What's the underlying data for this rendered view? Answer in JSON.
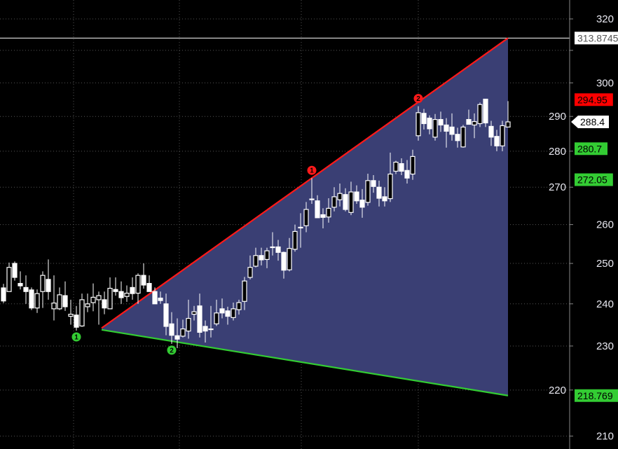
{
  "chart_data": {
    "type": "candlestick",
    "yscale": "log",
    "ylim": [
      208,
      324
    ],
    "grid": true,
    "y_ticks": [
      320,
      310,
      300,
      290,
      280,
      270,
      260,
      250,
      240,
      230,
      220,
      210
    ],
    "y_tick_labels": [
      "320",
      "",
      "300",
      "290",
      "280",
      "270",
      "260",
      "250",
      "240",
      "230",
      "220",
      "210"
    ],
    "candle_fields": [
      "open",
      "high",
      "low",
      "close"
    ],
    "candles": [
      [
        243.9,
        244.9,
        240.2,
        240.7
      ],
      [
        243,
        250.2,
        243,
        249
      ],
      [
        250,
        250.5,
        245.7,
        246.5
      ],
      [
        245,
        248,
        243.5,
        244.4
      ],
      [
        244,
        247,
        240,
        243
      ],
      [
        243.4,
        244,
        238.5,
        239
      ],
      [
        239,
        243.5,
        237.8,
        242.5
      ],
      [
        243,
        248,
        239,
        247
      ],
      [
        246,
        251,
        241,
        243
      ],
      [
        238.8,
        247,
        236,
        240.2
      ],
      [
        238.8,
        244,
        238.5,
        242.2
      ],
      [
        242,
        245.5,
        238.3,
        239.3
      ],
      [
        237,
        241,
        235,
        237.5
      ],
      [
        237.3,
        239.5,
        233.6,
        234.4
      ],
      [
        234.7,
        242.5,
        234.5,
        241
      ],
      [
        239.3,
        242.5,
        238,
        240
      ],
      [
        240.3,
        245,
        238.2,
        241.6
      ],
      [
        241,
        243,
        235,
        242
      ],
      [
        241,
        243,
        237.5,
        239
      ],
      [
        238.8,
        246.5,
        238.8,
        243.8
      ],
      [
        243.5,
        246.5,
        242,
        243
      ],
      [
        243,
        245.5,
        240,
        241.5
      ],
      [
        241.8,
        244.5,
        240.5,
        242.6
      ],
      [
        244,
        246.5,
        241,
        242.5
      ],
      [
        242.6,
        247.5,
        240,
        247
      ],
      [
        247,
        250,
        243.7,
        244.6
      ],
      [
        245,
        247,
        243,
        243
      ],
      [
        243,
        244,
        240,
        240
      ],
      [
        241.4,
        243,
        240,
        240.8
      ],
      [
        240,
        242.5,
        232.5,
        234.6
      ],
      [
        235.2,
        238,
        230.5,
        232.5
      ],
      [
        232.4,
        236.5,
        229.5,
        231.6
      ],
      [
        232.3,
        236.2,
        232,
        234
      ],
      [
        233.5,
        241,
        231.7,
        236.5
      ],
      [
        237.5,
        239.5,
        236,
        238.1
      ],
      [
        239.5,
        242.5,
        232,
        233.2
      ],
      [
        234.6,
        236,
        230.8,
        233.5
      ],
      [
        234,
        239.5,
        232,
        234
      ],
      [
        235.2,
        241,
        234.7,
        237.8
      ],
      [
        238.8,
        241.3,
        236.5,
        237.8
      ],
      [
        238.3,
        239.3,
        235,
        237
      ],
      [
        236.7,
        240.3,
        236,
        238.8
      ],
      [
        238.6,
        241,
        237.4,
        240.3
      ],
      [
        240.6,
        246.6,
        238.5,
        245.6
      ],
      [
        246.5,
        252,
        246,
        249
      ],
      [
        249.3,
        254,
        249,
        252
      ],
      [
        252,
        254,
        249.5,
        250.9
      ],
      [
        251,
        254,
        248.8,
        253.2
      ],
      [
        254.2,
        258,
        252,
        254.2
      ],
      [
        254.2,
        256,
        250.7,
        252.8
      ],
      [
        252.8,
        253,
        246.2,
        248.3
      ],
      [
        248.4,
        256.5,
        248,
        253.8
      ],
      [
        253.6,
        260,
        253,
        258.2
      ],
      [
        259.3,
        263,
        254,
        259.3
      ],
      [
        259.7,
        266,
        258,
        264
      ],
      [
        266.8,
        272.5,
        265.5,
        266.8
      ],
      [
        266.3,
        267.8,
        261.8,
        261.8
      ],
      [
        262.6,
        264.3,
        259,
        261.9
      ],
      [
        262,
        267,
        260.5,
        264.3
      ],
      [
        264.6,
        270,
        263.5,
        267.4
      ],
      [
        266.6,
        271,
        264.8,
        268.3
      ],
      [
        268,
        269.7,
        263.5,
        264
      ],
      [
        263.2,
        271.5,
        262.5,
        268.7
      ],
      [
        268.7,
        270.5,
        265.5,
        266.3
      ],
      [
        266.5,
        269.5,
        261.8,
        264.6
      ],
      [
        265.9,
        273.7,
        265,
        271.8
      ],
      [
        271.8,
        273.3,
        268.5,
        270.2
      ],
      [
        270,
        271.8,
        264.8,
        267
      ],
      [
        267.4,
        270,
        264.8,
        266.3
      ],
      [
        266.9,
        279.6,
        266,
        273.6
      ],
      [
        274.4,
        277.3,
        273.6,
        276.9
      ],
      [
        276.5,
        278,
        273.3,
        274.4
      ],
      [
        274.6,
        277.5,
        271,
        272.5
      ],
      [
        273.6,
        280.4,
        272,
        278.5
      ],
      [
        284.4,
        293,
        283,
        291.1
      ],
      [
        290.9,
        292.2,
        286.2,
        287.9
      ],
      [
        289.5,
        290.3,
        284.8,
        286.4
      ],
      [
        284,
        290.7,
        283,
        289.1
      ],
      [
        289.1,
        291.4,
        285.5,
        287.5
      ],
      [
        287.5,
        289.5,
        281,
        285.7
      ],
      [
        286.9,
        290.9,
        283,
        284.8
      ],
      [
        284.8,
        286.7,
        281,
        283
      ],
      [
        281.2,
        287.5,
        281,
        286.9
      ],
      [
        289.1,
        292,
        287.7,
        287.7
      ],
      [
        287.5,
        290.9,
        283.7,
        288.5
      ],
      [
        287.9,
        294.1,
        286.9,
        293.5
      ],
      [
        295.1,
        295.1,
        286.9,
        288.1
      ],
      [
        287.1,
        288.7,
        281.5,
        284
      ],
      [
        284.2,
        286.1,
        280,
        281.5
      ],
      [
        281.5,
        288.7,
        280,
        287.3
      ],
      [
        286.9,
        294.5,
        286.9,
        288.4
      ]
    ],
    "up_candle_style": "hollow",
    "down_candle_style": "filled-white",
    "trendlines": [
      {
        "role": "upper",
        "color": "#ff1a1a",
        "from": {
          "index": 17.5,
          "price": 234.2
        },
        "to": {
          "index": 90,
          "price": 313.8745
        }
      },
      {
        "role": "lower",
        "color": "#33cc33",
        "from": {
          "index": 17.5,
          "price": 233.8
        },
        "to": {
          "index": 90,
          "price": 218.769
        }
      }
    ],
    "fill_color": "#3a3f74",
    "horizontal_line": {
      "price": 313.8745,
      "color": "#ffffff"
    },
    "markers": [
      {
        "text": "1",
        "color": "#ff1a1a",
        "index": 55,
        "anchor": "high"
      },
      {
        "text": "2",
        "color": "#ff1a1a",
        "index": 74,
        "anchor": "high"
      },
      {
        "text": "1",
        "color": "#33cc33",
        "index": 13,
        "anchor": "low"
      },
      {
        "text": "2",
        "color": "#33cc33",
        "index": 30,
        "anchor": "low"
      }
    ],
    "price_badges": [
      {
        "value": "313.8745",
        "price": 313.8745,
        "bg": "#ffffff",
        "fg": "#555555",
        "style": "box"
      },
      {
        "value": "294.95",
        "price": 294.95,
        "bg": "#ff0000",
        "fg": "#000000",
        "style": "box"
      },
      {
        "value": "288.4",
        "price": 288.4,
        "bg": "#ffffff",
        "fg": "#000000",
        "style": "arrow"
      },
      {
        "value": "280.7",
        "price": 280.7,
        "bg": "#33cc33",
        "fg": "#000000",
        "style": "box"
      },
      {
        "value": "272.05",
        "price": 272.05,
        "bg": "#33cc33",
        "fg": "#000000",
        "style": "box"
      },
      {
        "value": "218.769",
        "price": 218.769,
        "bg": "#33cc33",
        "fg": "#000000",
        "style": "box"
      }
    ]
  }
}
